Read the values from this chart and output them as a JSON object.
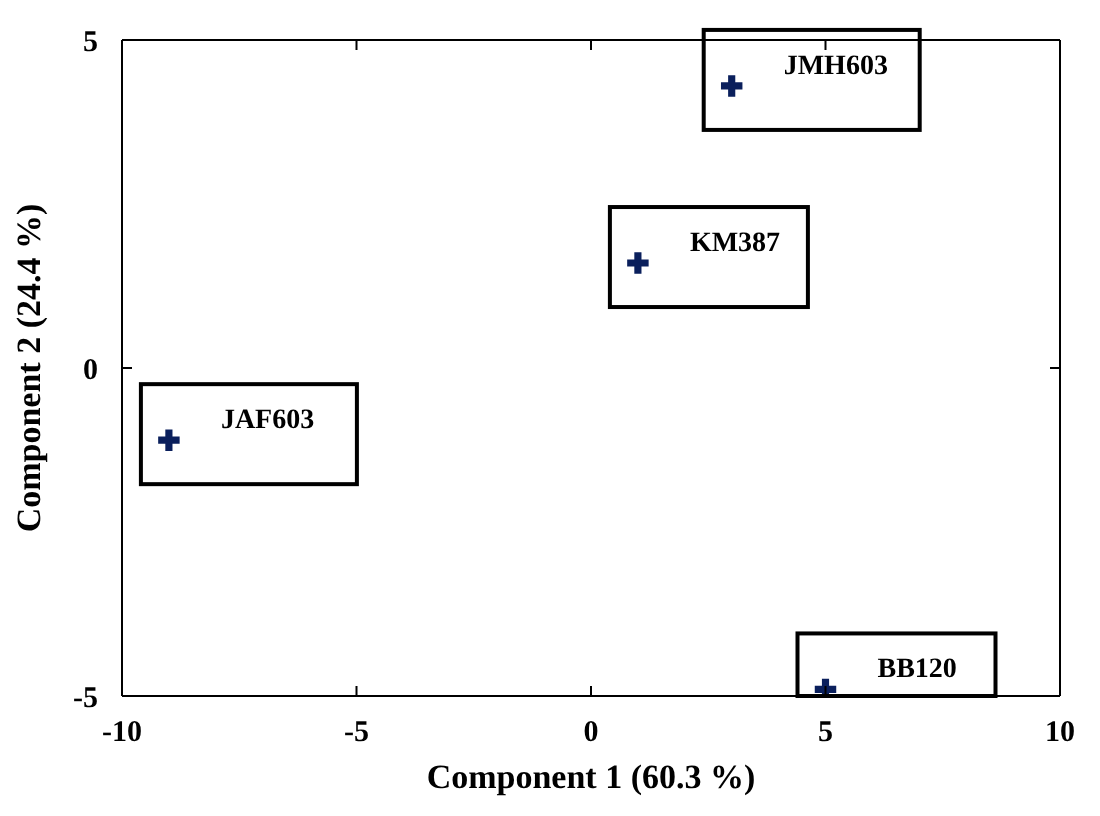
{
  "chart_data": {
    "type": "scatter",
    "xlabel": "Component 1 (60.3 %)",
    "ylabel": "Component  2 (24.4 %)",
    "x": [
      3,
      1,
      -9,
      5
    ],
    "series": [
      {
        "color": "#0a1f5c",
        "values": [
          4.3,
          1.6,
          -1.1,
          -4.9
        ]
      }
    ],
    "marker": "cross",
    "xlim": [
      -10,
      10
    ],
    "xticks": [
      -10,
      -5,
      0,
      5,
      10
    ],
    "ylim": [
      -5,
      5
    ],
    "yticks": [
      -5,
      0,
      5
    ],
    "annotations": [
      {
        "text": "JMH603",
        "x": 3,
        "y": 4.3
      },
      {
        "text": "KM387",
        "x": 1,
        "y": 1.6
      },
      {
        "text": "JAF603",
        "x": -9,
        "y": -1.1
      },
      {
        "text": "BB120",
        "x": 5,
        "y": -4.9
      }
    ]
  }
}
